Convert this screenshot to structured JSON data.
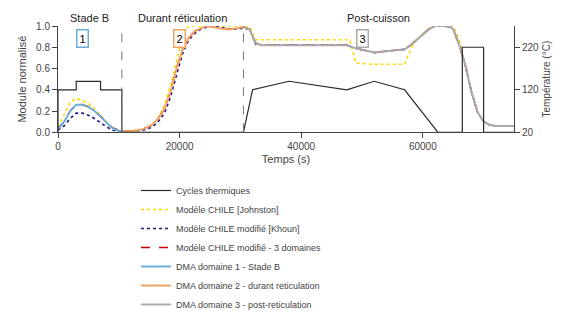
{
  "chart_data": {
    "type": "line",
    "xlabel": "Temps (s)",
    "ylabel": "Module normalisé",
    "y2label": "Température (°C)",
    "xlim": [
      0,
      75000
    ],
    "ylim": [
      0,
      1.0
    ],
    "y2lim": [
      20,
      270
    ],
    "xticks": [
      0,
      20000,
      40000,
      60000
    ],
    "yticks": [
      {
        "value": 0.0,
        "label": "0.0"
      },
      0.2,
      0.4,
      0.6,
      0.8,
      {
        "value": 1.0,
        "label": "1.0"
      }
    ],
    "y2ticks": [
      20,
      120,
      220
    ],
    "grid": false,
    "legend": "bottom",
    "series": [
      {
        "name": "Cycles thermiques",
        "color": "#2A2A2A",
        "line_style": "solid",
        "axis": "y2",
        "x": [
          0,
          0,
          3000,
          3000,
          7000,
          7000,
          10500,
          10500,
          22000,
          22000,
          30500,
          30500,
          32000,
          32000,
          38000,
          38000,
          47500,
          47500,
          52000,
          52000,
          57000,
          57000,
          62500,
          62500,
          66500,
          66500,
          70000,
          70000,
          75000
        ],
        "values": [
          20,
          120,
          120,
          140,
          140,
          120,
          120,
          20,
          20,
          20,
          20,
          20,
          120,
          120,
          140,
          140,
          120,
          120,
          140,
          140,
          120,
          120,
          20,
          20,
          20,
          220,
          220,
          20,
          20
        ]
      },
      {
        "name": "Modèle CHILE [Johnston]",
        "color": "#FFD700",
        "line_style": "dotted",
        "x": [
          0,
          1000,
          2000,
          3000,
          4000,
          5000,
          6000,
          7000,
          8000,
          9000,
          10500,
          12000,
          14000,
          15500,
          16500,
          17500,
          18500,
          19000,
          19500,
          20000,
          20500,
          21000,
          21500,
          22000,
          23000,
          24000,
          25000,
          26000,
          27000,
          28000,
          29000,
          30500,
          31500,
          32500,
          35000,
          37000,
          39000,
          41000,
          43000,
          45000,
          47000,
          47500,
          48000,
          49000,
          51000,
          52000,
          53000,
          55000,
          57000,
          58000,
          59000,
          60000,
          61000,
          62000,
          62500,
          63500,
          64500,
          65000,
          66000,
          67000,
          68000,
          69000,
          70000,
          71000,
          72000,
          73000,
          74000,
          75000
        ],
        "values": [
          0.05,
          0.17,
          0.28,
          0.32,
          0.3,
          0.27,
          0.22,
          0.16,
          0.09,
          0.03,
          0.01,
          0.01,
          0.03,
          0.07,
          0.14,
          0.25,
          0.44,
          0.56,
          0.68,
          0.8,
          0.9,
          0.97,
          1.0,
          1.0,
          1.0,
          1.0,
          1.0,
          1.0,
          1.0,
          1.0,
          1.0,
          1.0,
          1.0,
          0.87,
          0.87,
          0.87,
          0.87,
          0.87,
          0.87,
          0.87,
          0.87,
          0.87,
          0.87,
          0.65,
          0.64,
          0.64,
          0.64,
          0.64,
          0.64,
          0.78,
          0.87,
          0.93,
          0.98,
          1.0,
          1.0,
          1.0,
          1.0,
          1.0,
          0.87,
          0.63,
          0.38,
          0.19,
          0.1,
          0.07,
          0.06,
          0.06,
          0.06,
          0.06
        ]
      },
      {
        "name": "Modèle CHILE modifié [Khoun]",
        "color": "#1C1C8A",
        "line_style": "dotted",
        "x": [
          0,
          1000,
          2000,
          3000,
          4000,
          5000,
          6000,
          7000,
          8000,
          9000,
          10500,
          12000,
          14000,
          15500,
          16500,
          17500,
          18500,
          19500,
          20500,
          21500,
          22500,
          23500,
          24500,
          25500,
          26500,
          27500,
          28500,
          29500,
          30500,
          31500,
          32500,
          33500,
          35000,
          37000,
          39000,
          41000,
          43000,
          45000,
          47000,
          47500,
          49000,
          51000,
          52000,
          53500,
          55000,
          57000,
          58000,
          59000,
          60000,
          61000,
          62000,
          62500,
          63500,
          64500,
          65000,
          66000,
          67000,
          68000,
          69000,
          70000,
          71000,
          72000,
          73000,
          74000,
          75000
        ],
        "values": [
          0.02,
          0.06,
          0.13,
          0.18,
          0.18,
          0.16,
          0.13,
          0.09,
          0.05,
          0.02,
          0.01,
          0.01,
          0.02,
          0.05,
          0.1,
          0.18,
          0.33,
          0.54,
          0.74,
          0.87,
          0.93,
          0.97,
          0.99,
          1.0,
          0.99,
          0.98,
          0.97,
          0.97,
          0.98,
          0.97,
          0.83,
          0.82,
          0.82,
          0.82,
          0.82,
          0.82,
          0.82,
          0.82,
          0.82,
          0.82,
          0.79,
          0.76,
          0.75,
          0.76,
          0.77,
          0.78,
          0.82,
          0.87,
          0.92,
          0.97,
          1.0,
          1.0,
          1.0,
          0.99,
          0.97,
          0.82,
          0.63,
          0.38,
          0.19,
          0.1,
          0.07,
          0.06,
          0.06,
          0.06,
          0.06
        ]
      },
      {
        "name": "Modèle CHILE modifié - 3 domaines",
        "color": "#CC0000",
        "line_style": "dashed",
        "x": [
          0,
          1000,
          2000,
          3000,
          4000,
          5000,
          6000,
          7000,
          8000,
          9000,
          10500,
          12000,
          14000,
          15500,
          16500,
          17500,
          18500,
          19500,
          20500,
          21500,
          22500,
          23500,
          24500,
          25500,
          26500,
          27500,
          28500,
          29500,
          30500,
          31500,
          32500,
          33500,
          35000,
          37000,
          39000,
          41000,
          43000,
          45000,
          47000,
          47500,
          49000,
          51000,
          52000,
          53500,
          55000,
          57000,
          58000,
          59000,
          60000,
          61000,
          62000,
          62500,
          63500,
          64500,
          65000,
          66000,
          67000,
          68000,
          69000,
          70000,
          71000,
          72000,
          73000,
          74000,
          75000
        ],
        "values": [
          0.03,
          0.1,
          0.2,
          0.26,
          0.26,
          0.24,
          0.2,
          0.15,
          0.09,
          0.04,
          0.01,
          0.01,
          0.03,
          0.07,
          0.13,
          0.22,
          0.38,
          0.6,
          0.78,
          0.89,
          0.95,
          0.98,
          1.0,
          0.99,
          0.98,
          0.97,
          0.97,
          0.98,
          0.99,
          0.97,
          0.84,
          0.82,
          0.82,
          0.82,
          0.82,
          0.82,
          0.82,
          0.82,
          0.82,
          0.82,
          0.79,
          0.76,
          0.75,
          0.76,
          0.77,
          0.78,
          0.82,
          0.87,
          0.92,
          0.97,
          1.0,
          1.0,
          1.0,
          0.99,
          0.97,
          0.82,
          0.63,
          0.38,
          0.19,
          0.1,
          0.07,
          0.06,
          0.06,
          0.06,
          0.06
        ]
      },
      {
        "name": "DMA domaine 1 - Stade B",
        "color": "#6BAED6",
        "line_style": "solid",
        "x": [
          0,
          1000,
          2000,
          3000,
          4000,
          5000,
          6000,
          7000,
          8000,
          9000,
          10000,
          10500
        ],
        "values": [
          0.03,
          0.1,
          0.2,
          0.26,
          0.26,
          0.24,
          0.2,
          0.15,
          0.09,
          0.04,
          0.01,
          0.01
        ]
      },
      {
        "name": "DMA domaine 2 - durant reticulation",
        "color": "#F4A460",
        "line_style": "solid",
        "x": [
          10500,
          12000,
          14000,
          15500,
          16500,
          17500,
          18500,
          19500,
          20500,
          21500,
          22500,
          23500,
          24500,
          25500,
          26500,
          27500,
          28500,
          29500,
          30500
        ],
        "values": [
          0.01,
          0.01,
          0.03,
          0.07,
          0.13,
          0.22,
          0.38,
          0.6,
          0.78,
          0.89,
          0.95,
          0.98,
          1.0,
          0.99,
          0.98,
          0.97,
          0.97,
          0.98,
          0.99
        ]
      },
      {
        "name": "DMA domaine 3 - post-reticulation",
        "color": "#AAAAAA",
        "line_style": "solid",
        "x": [
          30500,
          31500,
          32500,
          33500,
          35000,
          37000,
          39000,
          41000,
          43000,
          45000,
          47000,
          47500,
          49000,
          51000,
          52000,
          53500,
          55000,
          57000,
          58000,
          59000,
          60000,
          61000,
          62000,
          62500,
          63500,
          64500,
          65000,
          66000,
          67000,
          68000,
          69000,
          70000,
          71000,
          72000,
          73000,
          74000,
          75000
        ],
        "values": [
          0.99,
          0.97,
          0.84,
          0.82,
          0.82,
          0.82,
          0.82,
          0.82,
          0.82,
          0.82,
          0.82,
          0.82,
          0.79,
          0.76,
          0.75,
          0.76,
          0.77,
          0.78,
          0.82,
          0.87,
          0.92,
          0.97,
          1.0,
          1.0,
          1.0,
          0.99,
          0.97,
          0.82,
          0.63,
          0.38,
          0.19,
          0.1,
          0.07,
          0.06,
          0.06,
          0.06,
          0.06
        ]
      }
    ],
    "vlines": [
      {
        "x": 10500,
        "color": "#777777",
        "line_style": "dashed"
      },
      {
        "x": 30500,
        "color": "#777777",
        "line_style": "dashed"
      }
    ],
    "annotations": [
      {
        "text": "Stade B",
        "x": 5250
      },
      {
        "text": "Durant réticulation",
        "x": 20500
      },
      {
        "text": "Post-cuisson",
        "x": 52750
      },
      {
        "text": "1",
        "x": 4000,
        "y": 0.88,
        "color": "#6BAED6"
      },
      {
        "text": "2",
        "x": 20000,
        "y": 0.88,
        "color": "#F4A460"
      },
      {
        "text": "3",
        "x": 50000,
        "y": 0.88,
        "color": "#AAAAAA"
      }
    ]
  }
}
